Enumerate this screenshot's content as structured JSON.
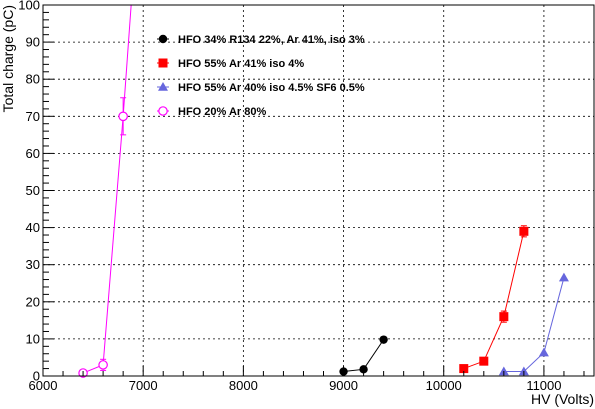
{
  "chart_data": {
    "type": "line",
    "xlabel": "HV (Volts)",
    "ylabel": "Total charge (pC)",
    "xlim": [
      6000,
      11500
    ],
    "ylim": [
      0,
      100
    ],
    "x_ticks": [
      "6000",
      "7000",
      "8000",
      "9000",
      "10000",
      "11000"
    ],
    "y_ticks": [
      "0",
      "10",
      "20",
      "30",
      "40",
      "50",
      "60",
      "70",
      "80",
      "90",
      "100"
    ],
    "grid": true,
    "legend_position": "top-center",
    "series": [
      {
        "name": "HFO 34% R134 22%, Ar 41%, iso 3%",
        "color": "#000000",
        "marker": "filled-circle",
        "points": [
          [
            9000,
            1.2
          ],
          [
            9200,
            1.8
          ],
          [
            9400,
            9.8
          ]
        ],
        "errors": [
          0,
          0,
          0
        ]
      },
      {
        "name": "HFO 55% Ar 41% iso 4%",
        "color": "#ff0000",
        "marker": "filled-square",
        "points": [
          [
            10200,
            2
          ],
          [
            10400,
            4
          ],
          [
            10600,
            16
          ],
          [
            10800,
            39
          ]
        ],
        "errors": [
          0,
          0,
          1.5,
          1.5
        ]
      },
      {
        "name": "HFO 55% Ar 40% iso 4.5% SF6 0.5%",
        "color": "#6666dd",
        "marker": "filled-triangle",
        "points": [
          [
            10600,
            1.2
          ],
          [
            10800,
            1.2
          ],
          [
            11000,
            6.3
          ],
          [
            11200,
            26.5
          ]
        ],
        "errors": [
          0,
          0,
          0,
          0
        ]
      },
      {
        "name": "HFO 20% Ar 80%",
        "color": "#ff00ff",
        "marker": "open-circle",
        "points": [
          [
            6400,
            0.8
          ],
          [
            6600,
            3
          ],
          [
            6800,
            70
          ]
        ],
        "errors": [
          0,
          1.5,
          5
        ]
      }
    ],
    "curve_extension": {
      "series": 3,
      "to": [
        6880,
        100
      ]
    }
  }
}
